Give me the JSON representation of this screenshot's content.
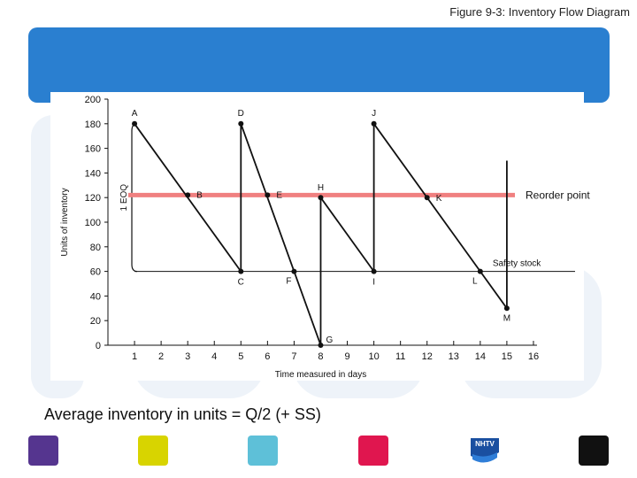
{
  "figure_title": "Figure 9-3:  Inventory Flow Diagram",
  "caption": "Average inventory in units = Q/2 (+ SS)",
  "colors": {
    "header_bar": "#2a7fd0",
    "reorder_line": "#f08080",
    "squares": [
      "#55358f",
      "#d8d400",
      "#5ec0d8",
      "#e0164f",
      "#111111"
    ]
  },
  "logo_text": "NHTV",
  "chart_data": {
    "type": "line",
    "xlabel": "Time measured in days",
    "ylabel": "Units of inventory",
    "xlim": [
      0,
      16
    ],
    "ylim": [
      0,
      200
    ],
    "x_ticks": [
      1,
      2,
      3,
      4,
      5,
      6,
      7,
      8,
      9,
      10,
      11,
      12,
      13,
      14,
      15,
      16
    ],
    "y_ticks": [
      0,
      20,
      40,
      60,
      80,
      100,
      120,
      140,
      160,
      180,
      200
    ],
    "reorder_point": {
      "value": 122,
      "label": "Reorder point"
    },
    "safety_stock": {
      "value": 60,
      "label": "Safety stock"
    },
    "eoq_label": "1 EOQ",
    "eoq_range": [
      60,
      180
    ],
    "points": [
      {
        "label": "A",
        "x": 1,
        "y": 180
      },
      {
        "label": "B",
        "x": 3,
        "y": 122
      },
      {
        "label": "C",
        "x": 5,
        "y": 60
      },
      {
        "label": "D",
        "x": 5,
        "y": 180
      },
      {
        "label": "E",
        "x": 6,
        "y": 122
      },
      {
        "label": "F",
        "x": 7,
        "y": 60
      },
      {
        "label": "G",
        "x": 8,
        "y": 0
      },
      {
        "label": "H",
        "x": 8,
        "y": 120
      },
      {
        "label": "I",
        "x": 10,
        "y": 60
      },
      {
        "label": "J",
        "x": 10,
        "y": 180
      },
      {
        "label": "K",
        "x": 12,
        "y": 120
      },
      {
        "label": "L",
        "x": 14,
        "y": 60
      },
      {
        "label": "M",
        "x": 15,
        "y": 30
      }
    ],
    "path": [
      [
        1,
        180
      ],
      [
        5,
        60
      ],
      [
        5,
        180
      ],
      [
        8,
        0
      ],
      [
        8,
        120
      ],
      [
        10,
        60
      ],
      [
        10,
        180
      ],
      [
        15,
        30
      ],
      [
        15,
        150
      ]
    ]
  }
}
